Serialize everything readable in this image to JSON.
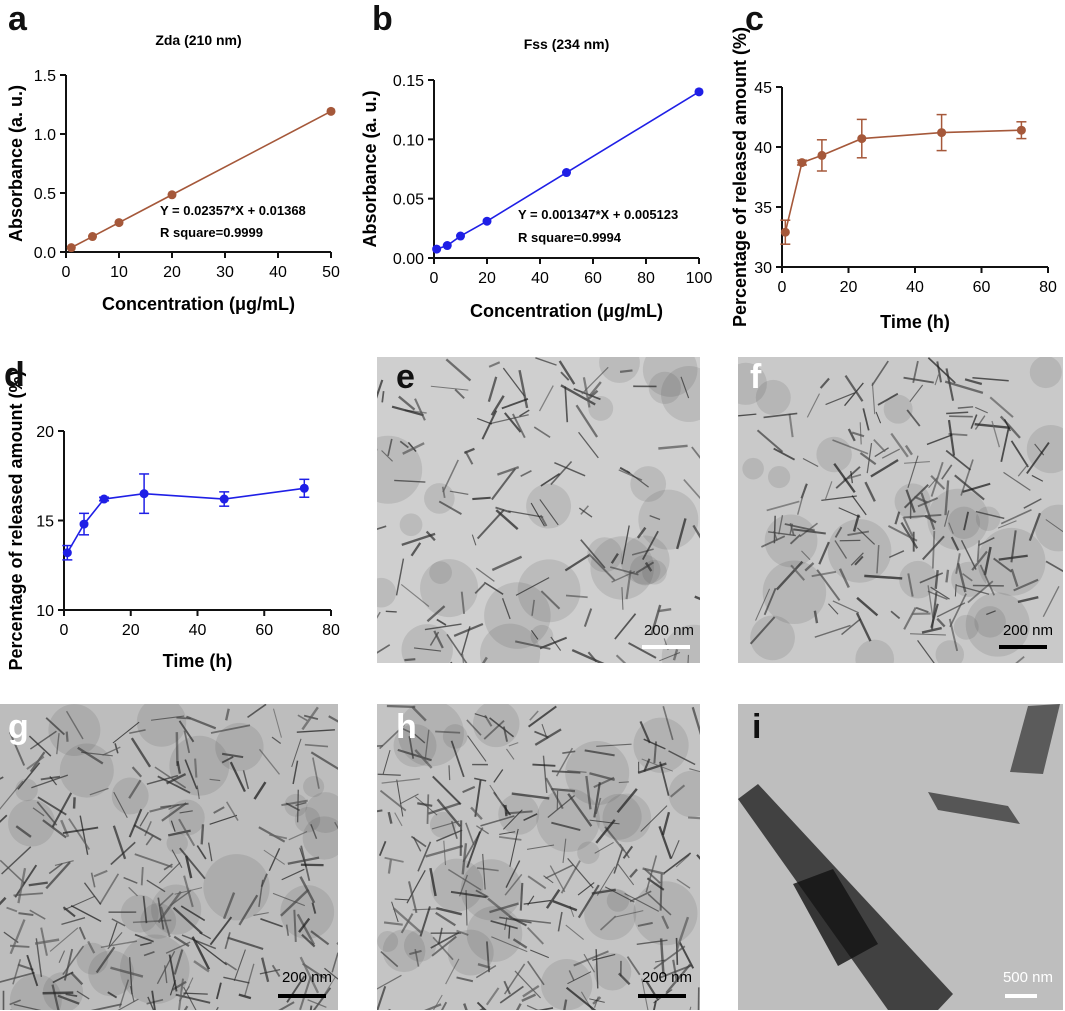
{
  "figure": {
    "panel_letters": [
      "a",
      "b",
      "c",
      "d",
      "e",
      "f",
      "g",
      "h",
      "i"
    ]
  },
  "colors": {
    "brown": "#a5583a",
    "blue": "#1f1fe6",
    "axis": "#111111"
  },
  "chart_data": [
    {
      "id": "a",
      "type": "line",
      "title": "Zda (210 nm)",
      "xlabel": "Concentration (μg/mL)",
      "ylabel": "Absorbance (a. u.)",
      "xlim": [
        0,
        50
      ],
      "ylim": [
        0,
        1.5
      ],
      "xticks": [
        0,
        10,
        20,
        30,
        40,
        50
      ],
      "xtick_labels": [
        "0",
        "10",
        "20",
        "30",
        "40",
        "50"
      ],
      "yticks": [
        0,
        0.5,
        1.0,
        1.5
      ],
      "ytick_labels": [
        "0.0",
        "0.5",
        "1.0",
        "1.5"
      ],
      "color": "#a5583a",
      "series": [
        {
          "x": [
            1,
            5,
            10,
            20,
            50
          ],
          "y": [
            0.037,
            0.131,
            0.249,
            0.485,
            1.192
          ]
        }
      ],
      "annotations": [
        "Y = 0.02357*X + 0.01368",
        "R square=0.9999"
      ]
    },
    {
      "id": "b",
      "type": "line",
      "title": "Fss (234 nm)",
      "xlabel": "Concentration (μg/mL)",
      "ylabel": "Absorbance (a. u.)",
      "xlim": [
        0,
        100
      ],
      "ylim": [
        0,
        0.15
      ],
      "xticks": [
        0,
        20,
        40,
        60,
        80,
        100
      ],
      "xtick_labels": [
        "0",
        "20",
        "40",
        "60",
        "80",
        "100"
      ],
      "yticks": [
        0,
        0.05,
        0.1,
        0.15
      ],
      "ytick_labels": [
        "0.00",
        "0.05",
        "0.10",
        "0.15"
      ],
      "color": "#1f1fe6",
      "series": [
        {
          "x": [
            1,
            5,
            10,
            20,
            50,
            100
          ],
          "y": [
            0.0075,
            0.0105,
            0.0185,
            0.031,
            0.072,
            0.14
          ]
        }
      ],
      "annotations": [
        "Y = 0.001347*X + 0.005123",
        "R square=0.9994"
      ]
    },
    {
      "id": "c",
      "type": "line",
      "title": "",
      "xlabel": "Time (h)",
      "ylabel": "Percentage of released amount (%)",
      "xlim": [
        0,
        80
      ],
      "ylim": [
        30,
        45
      ],
      "xticks": [
        0,
        20,
        40,
        60,
        80
      ],
      "xtick_labels": [
        "0",
        "20",
        "40",
        "60",
        "80"
      ],
      "yticks": [
        30,
        35,
        40,
        45
      ],
      "ytick_labels": [
        "30",
        "35",
        "40",
        "45"
      ],
      "color": "#a5583a",
      "series": [
        {
          "x": [
            1,
            6,
            12,
            24,
            48,
            72
          ],
          "y": [
            32.9,
            38.7,
            39.3,
            40.7,
            41.2,
            41.4
          ],
          "err": [
            1.0,
            0.2,
            1.3,
            1.6,
            1.5,
            0.7
          ]
        }
      ],
      "annotations": []
    },
    {
      "id": "d",
      "type": "line",
      "title": "",
      "xlabel": "Time (h)",
      "ylabel": "Percentage of released amount (%)",
      "xlim": [
        0,
        80
      ],
      "ylim": [
        10,
        20
      ],
      "xticks": [
        0,
        20,
        40,
        60,
        80
      ],
      "xtick_labels": [
        "0",
        "20",
        "40",
        "60",
        "80"
      ],
      "yticks": [
        10,
        15,
        20
      ],
      "ytick_labels": [
        "10",
        "15",
        "20"
      ],
      "color": "#1f1fe6",
      "series": [
        {
          "x": [
            1,
            6,
            12,
            24,
            48,
            72
          ],
          "y": [
            13.2,
            14.8,
            16.2,
            16.5,
            16.2,
            16.8
          ],
          "err": [
            0.4,
            0.6,
            0.1,
            1.1,
            0.4,
            0.5
          ]
        }
      ],
      "annotations": []
    }
  ],
  "tem_panels": [
    {
      "id": "e",
      "scale": "200 nm",
      "scale_color": "#ffffff",
      "bg": "#cfcfcf"
    },
    {
      "id": "f",
      "scale": "200 nm",
      "scale_color": "#000000",
      "bg": "#c9c9c9"
    },
    {
      "id": "g",
      "scale": "200 nm",
      "scale_color": "#000000",
      "bg": "#bdbdbd"
    },
    {
      "id": "h",
      "scale": "200 nm",
      "scale_color": "#000000",
      "bg": "#c4c4c4"
    },
    {
      "id": "i",
      "scale": "500 nm",
      "scale_color": "#ffffff",
      "bg": "#bebebe"
    }
  ]
}
